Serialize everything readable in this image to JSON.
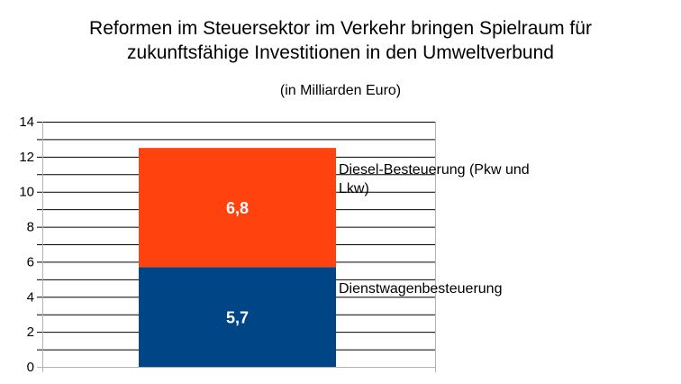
{
  "chart_data": {
    "type": "bar",
    "stacked": true,
    "title_line1": "Reformen im Steuersektor im Verkehr bringen Spielraum für",
    "title_line2": "zukunftsfähige Investitionen in den Umweltverbund",
    "subtitle": "(in Milliarden Euro)",
    "categories": [
      ""
    ],
    "ylim": [
      0,
      14
    ],
    "yticks": [
      "0",
      "2",
      "4",
      "6",
      "8",
      "10",
      "12",
      "14"
    ],
    "grid": true,
    "series": [
      {
        "name": "Dienstwagenbesteuerung",
        "values": [
          5.7
        ],
        "label": "5,7",
        "color": "#004586"
      },
      {
        "name": "Diesel-Besteuerung (Pkw und Lkw)",
        "values": [
          6.8
        ],
        "label": "6,8",
        "color": "#ff420e"
      }
    ]
  }
}
